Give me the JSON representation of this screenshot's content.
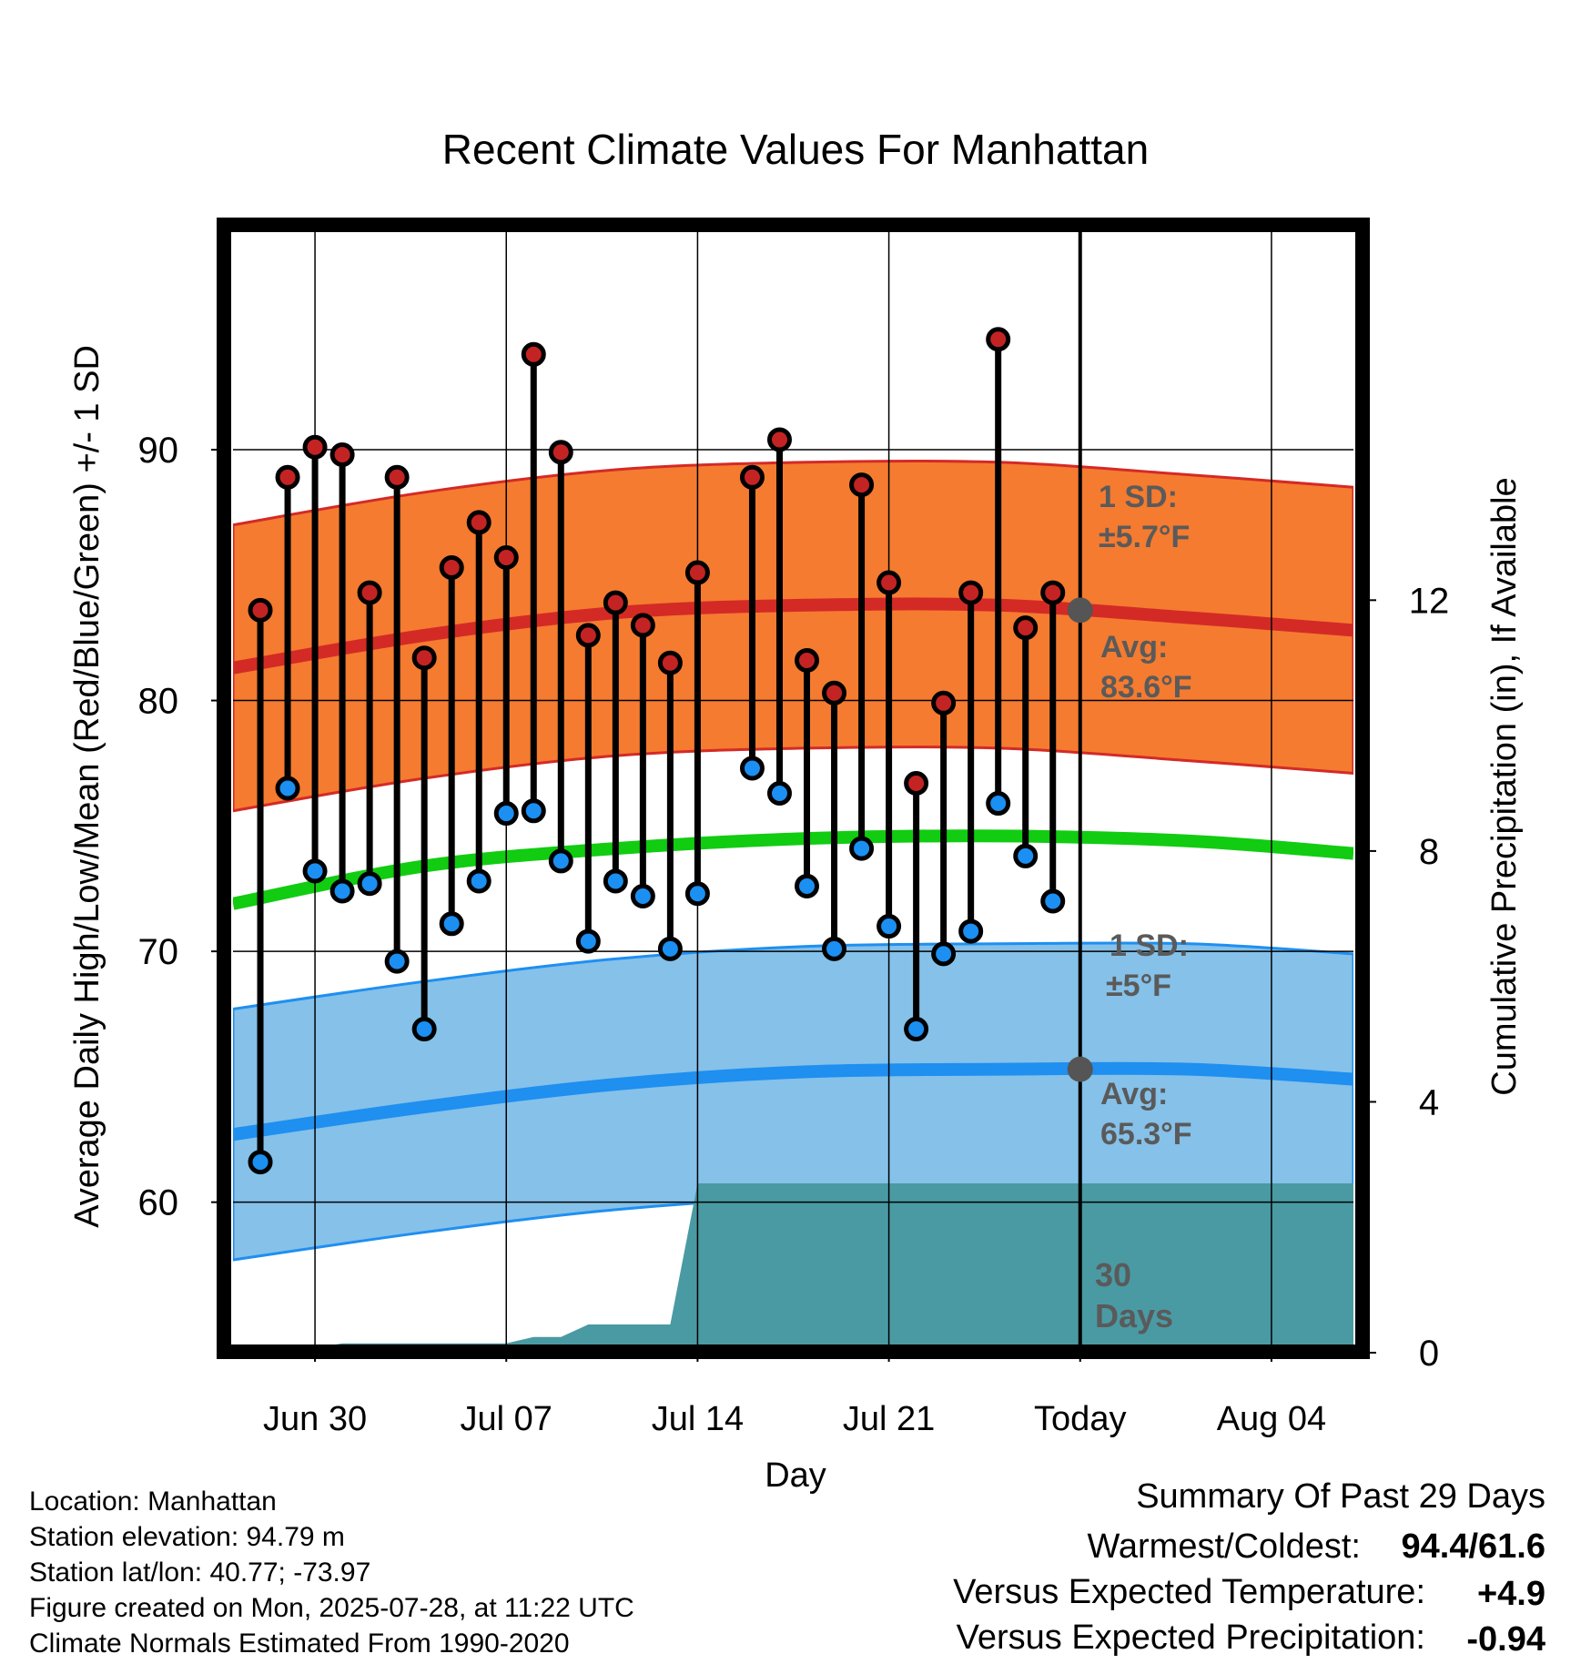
{
  "chart_data": {
    "type": "line",
    "title": "Recent Climate Values For Manhattan",
    "xlabel": "Day",
    "ylabel_left": "Average Daily High/Low/Mean (Red/Blue/Green) +/- 1 SD",
    "ylabel_right": "Cumulative Precipitation (in), If Available",
    "x_start_date": "2025-06-27",
    "x_end_date": "2025-08-07",
    "today": "2025-07-28",
    "ylim_left": [
      54,
      99
    ],
    "ylim_right": [
      0,
      18
    ],
    "yticks_left": [
      {
        "value": 60,
        "label": "60"
      },
      {
        "value": 70,
        "label": "70"
      },
      {
        "value": 80,
        "label": "80"
      },
      {
        "value": 90,
        "label": "90"
      }
    ],
    "yticks_left_minor": [
      55,
      65,
      75,
      85,
      95
    ],
    "yticks_right": [
      {
        "value": 0,
        "label": "0"
      },
      {
        "value": 4,
        "label": "4"
      },
      {
        "value": 8,
        "label": "8"
      },
      {
        "value": 12,
        "label": "12"
      }
    ],
    "xticks": [
      {
        "date": "2025-06-30",
        "label": "Jun 30"
      },
      {
        "date": "2025-07-07",
        "label": "Jul 07"
      },
      {
        "date": "2025-07-14",
        "label": "Jul 14"
      },
      {
        "date": "2025-07-21",
        "label": "Jul 21"
      },
      {
        "date": "2025-07-28",
        "label": "Today"
      },
      {
        "date": "2025-08-04",
        "label": "Aug 04"
      }
    ],
    "grid": true,
    "daily_dates": [
      "2025-06-28",
      "2025-06-29",
      "2025-06-30",
      "2025-07-01",
      "2025-07-02",
      "2025-07-03",
      "2025-07-04",
      "2025-07-05",
      "2025-07-06",
      "2025-07-07",
      "2025-07-08",
      "2025-07-09",
      "2025-07-10",
      "2025-07-11",
      "2025-07-12",
      "2025-07-13",
      "2025-07-14",
      "2025-07-15",
      "2025-07-16",
      "2025-07-17",
      "2025-07-18",
      "2025-07-19",
      "2025-07-20",
      "2025-07-21",
      "2025-07-22",
      "2025-07-23",
      "2025-07-24",
      "2025-07-25",
      "2025-07-26",
      "2025-07-27"
    ],
    "daily_highs": [
      83.6,
      88.9,
      90.1,
      89.8,
      84.3,
      88.9,
      81.7,
      85.3,
      87.1,
      85.7,
      93.8,
      89.9,
      82.6,
      83.9,
      83.0,
      81.5,
      85.1,
      null,
      88.9,
      90.4,
      81.6,
      80.3,
      88.6,
      84.7,
      76.7,
      79.9,
      84.3,
      94.4,
      82.9,
      84.3
    ],
    "daily_lows": [
      61.6,
      76.5,
      73.2,
      72.4,
      72.7,
      69.6,
      66.9,
      71.1,
      72.8,
      75.5,
      75.6,
      73.6,
      70.4,
      72.8,
      72.2,
      70.1,
      72.3,
      null,
      77.3,
      76.3,
      72.6,
      70.1,
      74.1,
      71.0,
      66.9,
      69.9,
      70.8,
      75.9,
      73.8,
      72.0
    ],
    "normal_curve_dates": [
      "2025-06-27",
      "2025-07-04",
      "2025-07-11",
      "2025-07-18",
      "2025-07-25",
      "2025-08-01",
      "2025-08-07"
    ],
    "normal_high_mean": [
      81.3,
      82.6,
      83.5,
      83.8,
      83.8,
      83.3,
      82.8
    ],
    "normal_high_sd": 5.7,
    "normal_low_mean": [
      62.7,
      63.8,
      64.7,
      65.2,
      65.3,
      65.3,
      64.9
    ],
    "normal_low_sd": 5.0,
    "normal_mean": [
      71.9,
      73.4,
      74.1,
      74.5,
      74.6,
      74.4,
      73.9
    ],
    "precip_dates": [
      "2025-06-27",
      "2025-06-28",
      "2025-06-29",
      "2025-07-01",
      "2025-07-07",
      "2025-07-08",
      "2025-07-09",
      "2025-07-10",
      "2025-07-13",
      "2025-07-14",
      "2025-08-07"
    ],
    "precip_cumulative": [
      0.0,
      0.0,
      0.0,
      0.15,
      0.15,
      0.25,
      0.25,
      0.45,
      0.45,
      2.7,
      2.7
    ],
    "colors": {
      "high_band": "#f47b30",
      "high_line": "#d42a26",
      "low_band": "#85c1e9",
      "low_line": "#1f8ff0",
      "mean_line": "#11cc11",
      "precip": "#4a9aa3",
      "high_marker": "#c42324",
      "low_marker": "#1b8ff2",
      "today_marker": "#555555"
    },
    "annotations": {
      "high_sd_label": "1 SD:",
      "high_sd_value": "±5.7°F",
      "high_avg_label": "Avg:",
      "high_avg_value": "83.6°F",
      "low_sd_label": "1 SD:",
      "low_sd_value": "±5°F",
      "low_avg_label": "Avg:",
      "low_avg_value": "65.3°F",
      "period_number": "30",
      "period_unit": "Days"
    }
  },
  "info": [
    "Location: Manhattan",
    "Station elevation: 94.79 m",
    "Station lat/lon: 40.77; -73.97",
    "Figure created on Mon, 2025-07-28, at 11:22 UTC",
    "Climate Normals Estimated From 1990-2020"
  ],
  "summary": {
    "title": "Summary Of Past 29 Days",
    "warmest_coldest_label": "Warmest/Coldest:",
    "warmest_coldest_value": "94.4/61.6",
    "temp_label": "Versus Expected Temperature:",
    "temp_value": "+4.9",
    "temp_color": "#cc2222",
    "precip_label": "Versus Expected Precipitation:",
    "precip_value": "-0.94",
    "precip_color": "#9a5a2a"
  }
}
